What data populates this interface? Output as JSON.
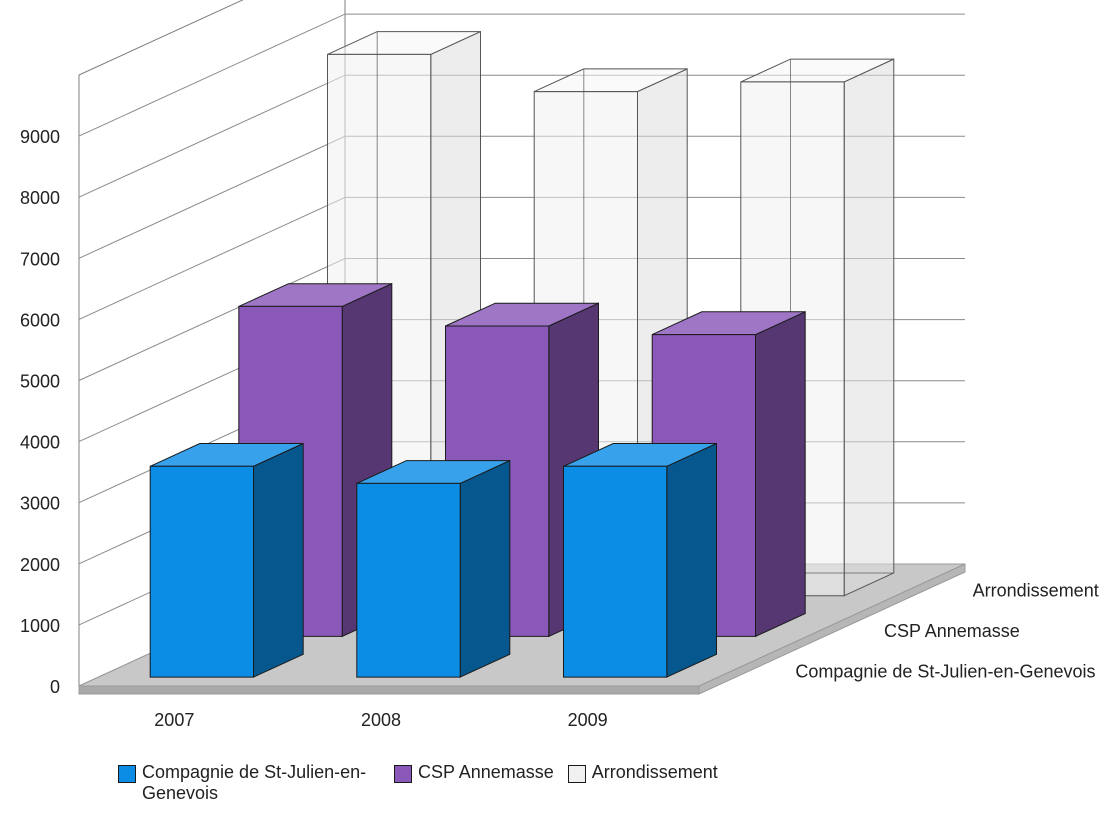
{
  "chart_data": {
    "type": "bar",
    "variant": "3d-column-depth",
    "categories": [
      "2007",
      "2008",
      "2009"
    ],
    "series": [
      {
        "name": "Compagnie de St-Julien-en-Genevois",
        "values": [
          3450,
          3170,
          3450
        ],
        "color": "#0b8de6"
      },
      {
        "name": "CSP Annemasse",
        "values": [
          5400,
          5080,
          4940
        ],
        "color": "#8a58b8"
      },
      {
        "name": "Arrondissement",
        "values": [
          8860,
          8250,
          8410
        ],
        "color": "#f0f0f0"
      }
    ],
    "y_ticks": [
      "0",
      "1000",
      "2000",
      "3000",
      "4000",
      "5000",
      "6000",
      "7000",
      "8000",
      "9000"
    ],
    "ylim": [
      0,
      9000
    ],
    "grid": true,
    "legend_position": "bottom"
  },
  "legend": {
    "item1": "Compagnie de St-Julien-en-Genevois",
    "item2": "CSP Annemasse",
    "item3": "Arrondissement"
  }
}
